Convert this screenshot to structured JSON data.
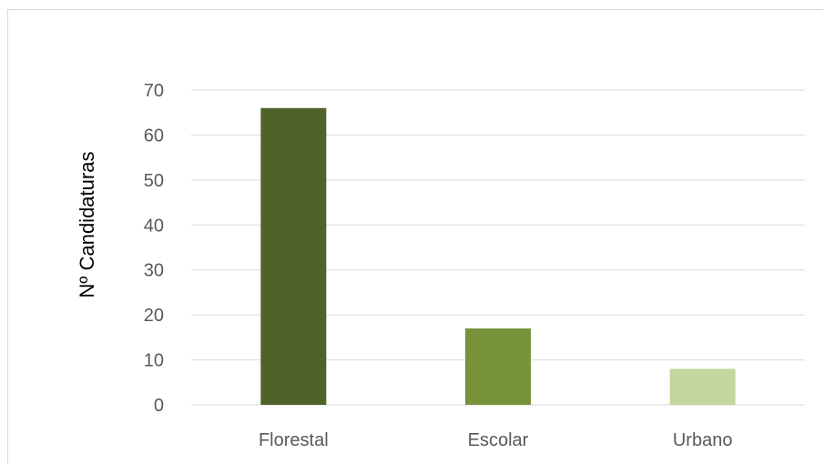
{
  "chart_data": {
    "type": "bar",
    "title": "",
    "xlabel": "",
    "ylabel": "Nº Candidaturas",
    "categories": [
      "Florestal",
      "Escolar",
      "Urbano"
    ],
    "values": [
      66,
      17,
      8
    ],
    "ylim": [
      0,
      70
    ],
    "yticks": [
      "0",
      "10",
      "20",
      "30",
      "40",
      "50",
      "60",
      "70"
    ],
    "grid": true,
    "legend": "none",
    "colors": [
      "#4f6228",
      "#77933c",
      "#c3d69b"
    ]
  },
  "colors": {
    "gridline": "#d9d9d9",
    "frame": "#d9d9d9",
    "text": "#595959"
  }
}
